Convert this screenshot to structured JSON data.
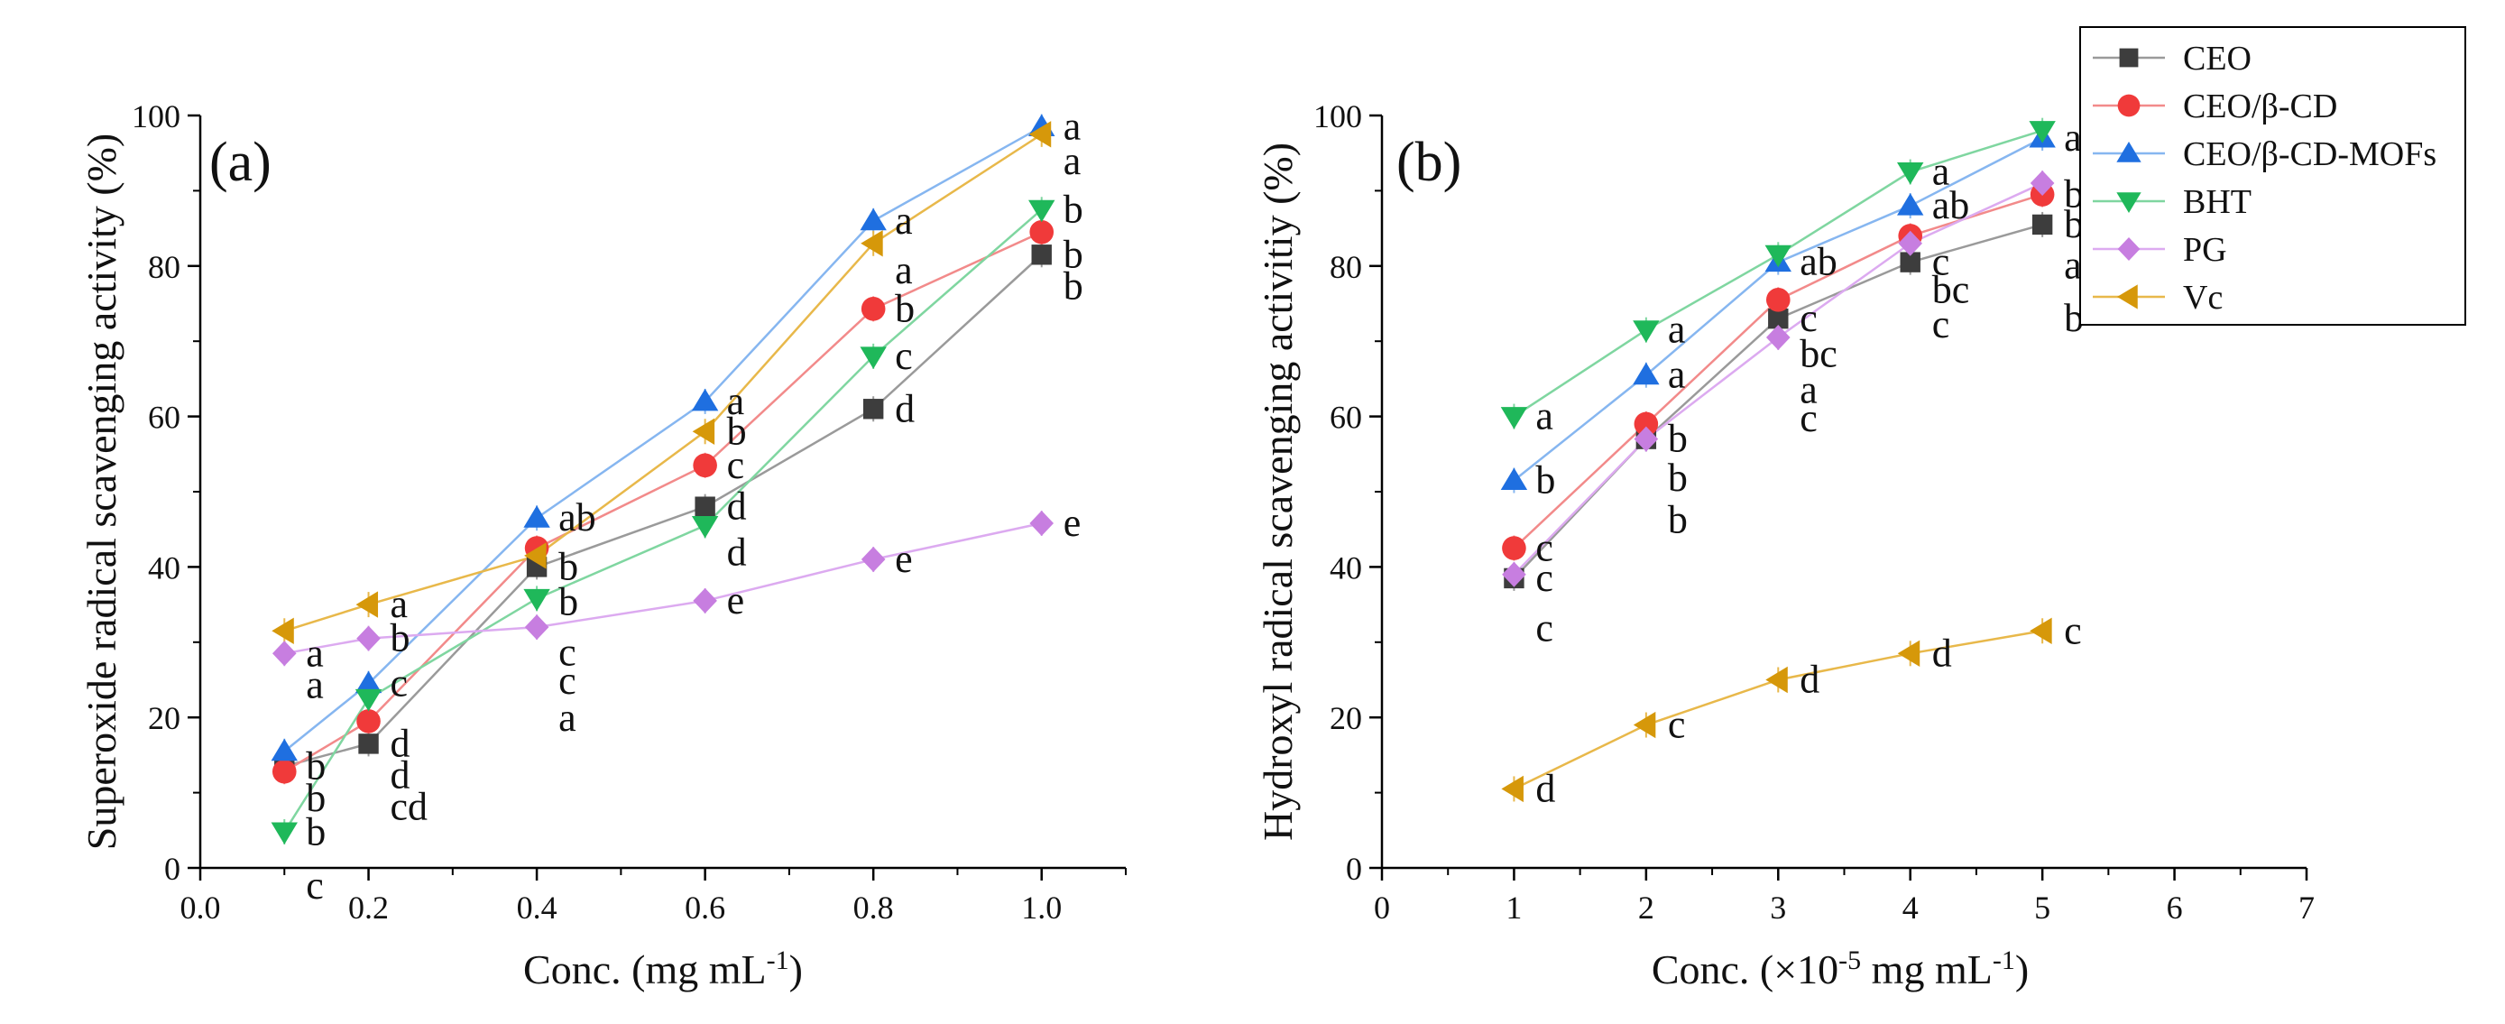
{
  "chart_data": [
    {
      "panel": "(a)",
      "type": "line",
      "xlabel": "Conc. (mg mL",
      "xlabel_sup": "-1",
      "xlabel_end": ")",
      "ylabel": "Superoxide radical scavenging activity (%)",
      "xlim": [
        0.0,
        1.1
      ],
      "ylim": [
        0,
        100
      ],
      "xticks": [
        "0.0",
        "0.2",
        "0.4",
        "0.6",
        "0.8",
        "1.0"
      ],
      "yticks": [
        "0",
        "20",
        "40",
        "60",
        "80",
        "100"
      ],
      "x": [
        0.1,
        0.2,
        0.4,
        0.6,
        0.8,
        1.0
      ],
      "series": [
        {
          "name": "CEO",
          "values": [
            13.5,
            16.5,
            40.0,
            48.0,
            61.0,
            81.5
          ],
          "letters": [
            "b",
            "d",
            "b",
            "d",
            "d",
            "b"
          ]
        },
        {
          "name": "CEO/β-CD",
          "values": [
            12.8,
            19.5,
            42.5,
            53.5,
            74.3,
            84.5
          ],
          "letters": [
            "b",
            "d",
            "b",
            "c",
            "b",
            "b"
          ]
        },
        {
          "name": "CEO/β-CD-MOFs",
          "values": [
            15.5,
            24.5,
            46.5,
            62.0,
            86.0,
            98.5
          ],
          "letters": [
            "b",
            "c",
            "ab",
            "a",
            "a",
            "a"
          ]
        },
        {
          "name": "BHT",
          "values": [
            4.8,
            22.5,
            35.8,
            45.5,
            68.0,
            87.5
          ],
          "letters": [
            "c",
            "cd",
            "c",
            "d",
            "c",
            "b"
          ]
        },
        {
          "name": "PG",
          "values": [
            28.5,
            30.5,
            32.0,
            35.5,
            41.0,
            45.8
          ],
          "letters": [
            "a",
            "b",
            "c",
            "e",
            "e",
            "e"
          ]
        },
        {
          "name": "Vc",
          "values": [
            31.5,
            35.0,
            41.5,
            58.0,
            83.0,
            97.5
          ],
          "letters": [
            "a",
            "a",
            "a",
            "b",
            "a",
            "a"
          ]
        }
      ]
    },
    {
      "panel": "(b)",
      "type": "line",
      "xlabel": "Conc. (×10",
      "xlabel_sup": "-5",
      "xlabel_end": " mg mL",
      "xlabel_sup2": "-1",
      "xlabel_end2": ")",
      "ylabel": "Hydroxyl radical scavenging activitiy (%)",
      "xlim": [
        0,
        7
      ],
      "ylim": [
        0,
        100
      ],
      "xticks": [
        "0",
        "1",
        "2",
        "3",
        "4",
        "5",
        "6",
        "7"
      ],
      "yticks": [
        "0",
        "20",
        "40",
        "60",
        "80",
        "100"
      ],
      "x": [
        1,
        2,
        3,
        4,
        5
      ],
      "series": [
        {
          "name": "CEO",
          "values": [
            38.5,
            57.0,
            73.0,
            80.5,
            85.5
          ],
          "letters": [
            "c",
            "b",
            "c",
            "c",
            "b"
          ]
        },
        {
          "name": "CEO/β-CD",
          "values": [
            42.5,
            59.0,
            75.5,
            84.0,
            89.5
          ],
          "letters": [
            "c",
            "b",
            "bc",
            "bc",
            "b"
          ]
        },
        {
          "name": "CEO/β-CD-MOFs",
          "values": [
            51.5,
            65.5,
            80.5,
            88.0,
            97.0
          ],
          "letters": [
            "b",
            "a",
            "ab",
            "ab",
            "a"
          ]
        },
        {
          "name": "BHT",
          "values": [
            60.0,
            71.5,
            81.5,
            92.5,
            98.0
          ],
          "letters": [
            "a",
            "a",
            "a",
            "a",
            "a"
          ]
        },
        {
          "name": "PG",
          "values": [
            39.0,
            57.0,
            70.5,
            83.0,
            91.0
          ],
          "letters": [
            "c",
            "b",
            "c",
            "c",
            "b"
          ]
        },
        {
          "name": "Vc",
          "values": [
            10.5,
            19.0,
            25.0,
            28.5,
            31.5
          ],
          "letters": [
            "d",
            "c",
            "d",
            "d",
            "c"
          ]
        }
      ]
    }
  ],
  "legend": {
    "placement": "top-right",
    "entries": [
      "CEO",
      "CEO/β-CD",
      "CEO/β-CD-MOFs",
      "BHT",
      "PG",
      "Vc"
    ]
  },
  "colors": {
    "CEO": "#3d3d3d",
    "CEO/β-CD": "#f03a3a",
    "CEO/β-CD-MOFs": "#1f6fe0",
    "BHT": "#1fb85a",
    "PG": "#c77ee0",
    "Vc": "#d6980a",
    "line_CEO": "#9a9a9a",
    "line_CEO/β-CD": "#f28a8a",
    "line_CEO/β-CD-MOFs": "#86b6f0",
    "line_BHT": "#7fd6a0",
    "line_PG": "#dcaaf0",
    "line_Vc": "#e8b84a"
  },
  "markers": {
    "CEO": "square",
    "CEO/β-CD": "circle",
    "CEO/β-CD-MOFs": "triangle-up",
    "BHT": "triangle-down",
    "PG": "diamond",
    "Vc": "triangle-left"
  }
}
